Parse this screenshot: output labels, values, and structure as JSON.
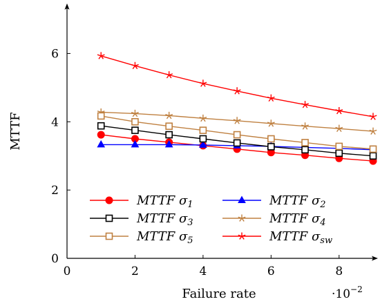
{
  "chart_data": {
    "type": "line",
    "title": "",
    "xlabel": "Failure rate",
    "ylabel": "MTTF",
    "x_multiplier_label": "·10",
    "x_multiplier_exponent": "−2",
    "xlim": [
      0,
      0.09
    ],
    "ylim": [
      0,
      7
    ],
    "x_ticks": [
      0,
      0.02,
      0.04,
      0.06,
      0.08
    ],
    "x_tick_labels": [
      "0",
      "2",
      "4",
      "6",
      "8"
    ],
    "y_ticks": [
      0,
      2,
      4,
      6
    ],
    "y_tick_labels": [
      "0",
      "2",
      "4",
      "6"
    ],
    "grid": false,
    "legend_placement": "bottom-left",
    "x": [
      0.01,
      0.02,
      0.03,
      0.04,
      0.05,
      0.06,
      0.07,
      0.08,
      0.09
    ],
    "series": [
      {
        "name": "MTTF",
        "sub": "1",
        "color": "#ff0000",
        "marker": "circle",
        "values": [
          3.62,
          3.5,
          3.4,
          3.3,
          3.2,
          3.1,
          3.02,
          2.93,
          2.85
        ]
      },
      {
        "name": "MTTF",
        "sub": "2",
        "color": "#0000ff",
        "marker": "triangle",
        "values": [
          3.33,
          3.33,
          3.33,
          3.32,
          3.3,
          3.28,
          3.25,
          3.22,
          3.18
        ]
      },
      {
        "name": "MTTF",
        "sub": "3",
        "color": "#000000",
        "marker": "square",
        "values": [
          3.88,
          3.75,
          3.62,
          3.5,
          3.38,
          3.27,
          3.18,
          3.08,
          3.0
        ]
      },
      {
        "name": "MTTF",
        "sub": "4",
        "color": "#bf8040",
        "marker": "star",
        "values": [
          4.28,
          4.24,
          4.18,
          4.1,
          4.03,
          3.95,
          3.87,
          3.8,
          3.72
        ]
      },
      {
        "name": "MTTF",
        "sub": "5",
        "color": "#bf8040",
        "marker": "square",
        "values": [
          4.17,
          4.0,
          3.87,
          3.75,
          3.62,
          3.5,
          3.39,
          3.28,
          3.2
        ]
      },
      {
        "name": "MTTF",
        "sub": "sw",
        "color": "#ff0000",
        "marker": "star",
        "values": [
          5.93,
          5.64,
          5.37,
          5.12,
          4.9,
          4.69,
          4.5,
          4.32,
          4.15
        ]
      }
    ]
  }
}
